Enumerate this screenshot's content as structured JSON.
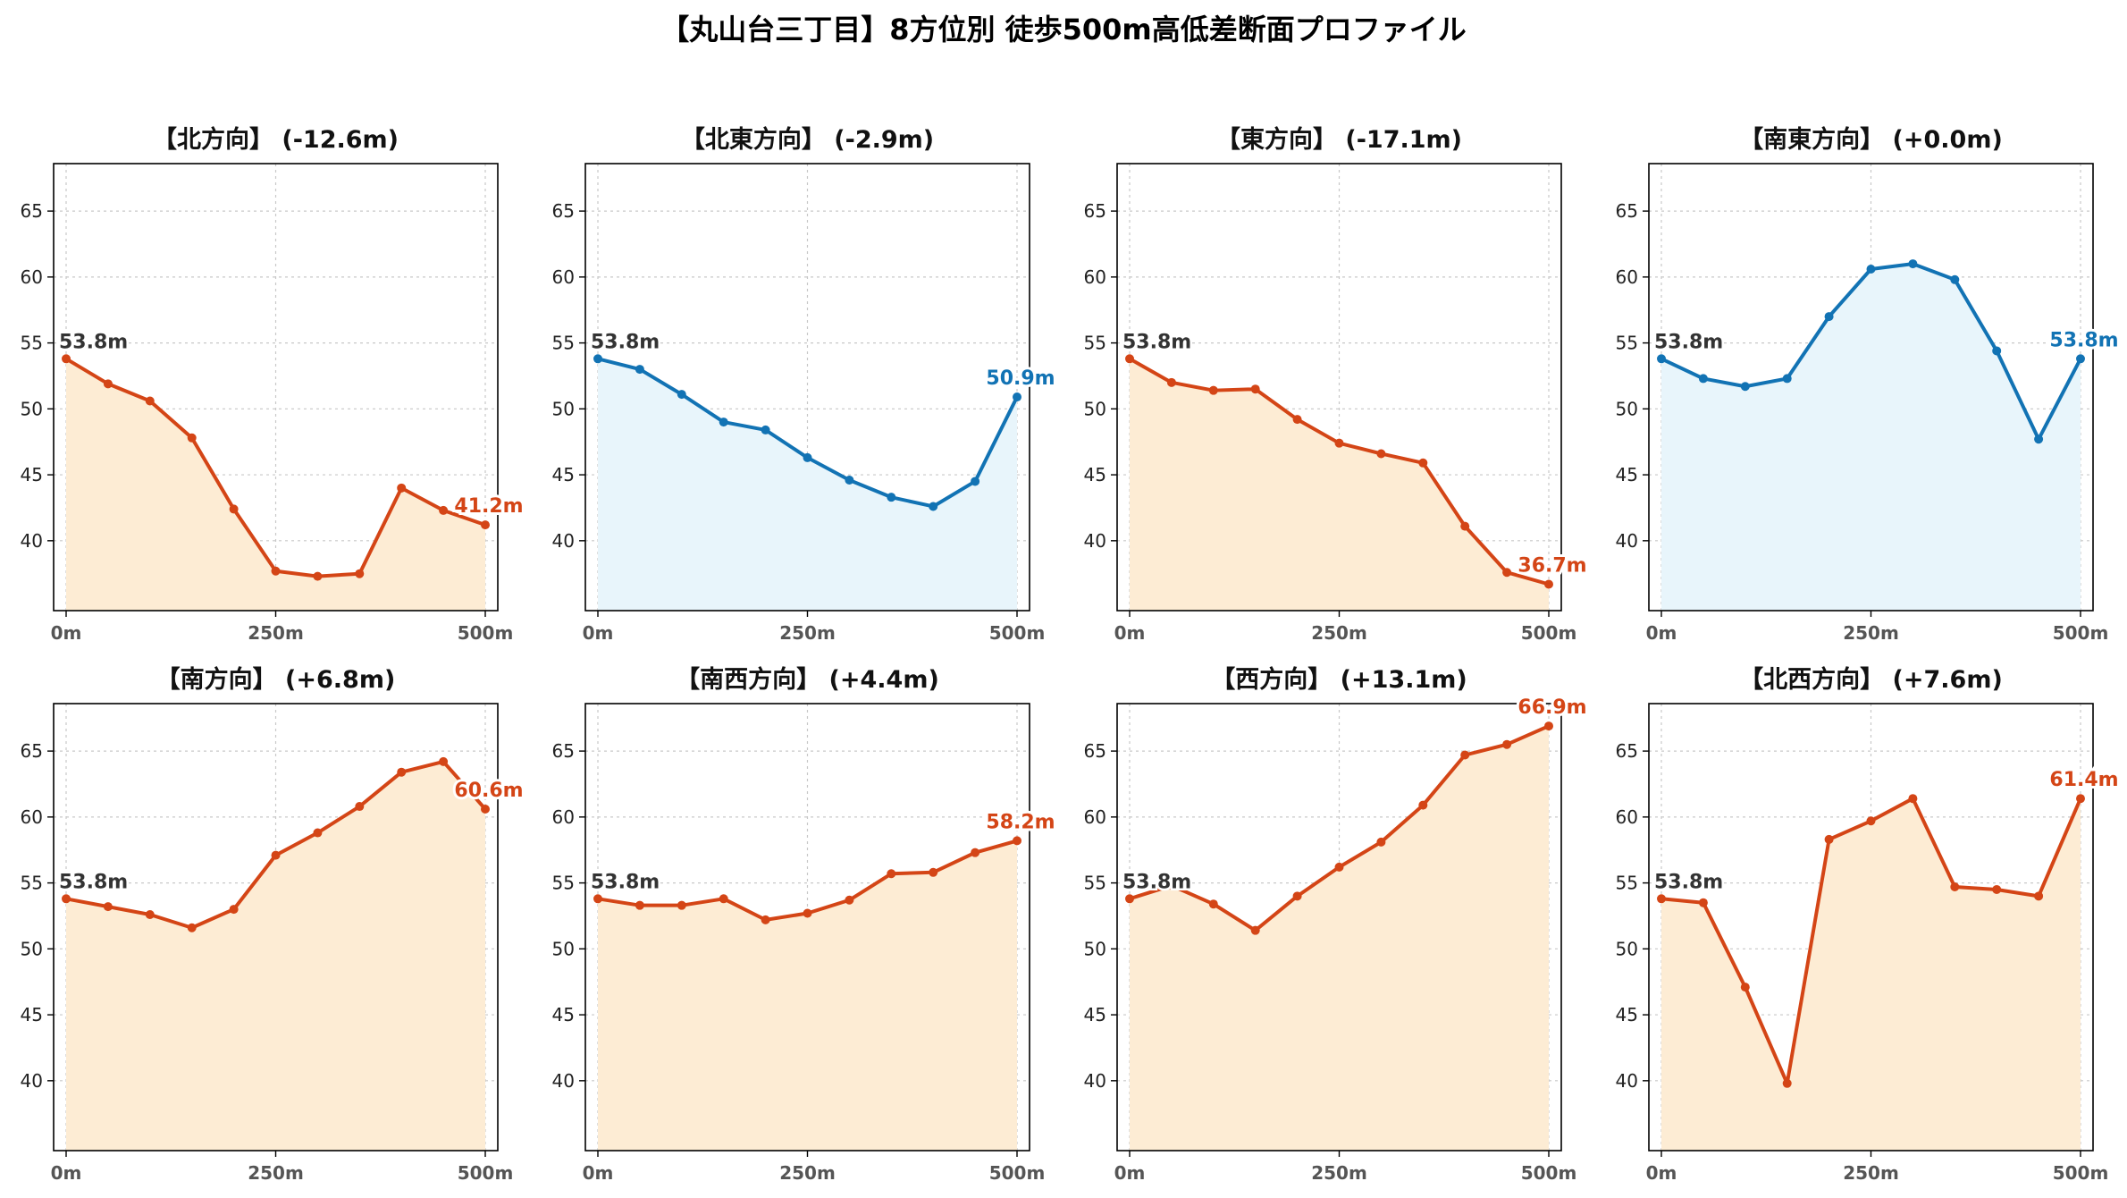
{
  "figure": {
    "title": "【丸山台三丁目】8方位別 徒歩500m高低差断面プロファイル",
    "colors": {
      "descent": "#d44516",
      "descent_fill": "#fdecd4",
      "ascent_blue": "#1273b4",
      "blue_fill": "#e8f5fb",
      "start_label": "#333333",
      "grid": "#c8c8c8"
    }
  },
  "chart_data": [
    {
      "type": "area",
      "title": "【北方向】 (-12.6m)",
      "x": [
        0,
        50,
        100,
        150,
        200,
        250,
        300,
        350,
        400,
        450,
        500
      ],
      "values": [
        53.8,
        51.9,
        50.6,
        47.8,
        42.4,
        37.7,
        37.3,
        37.5,
        44.0,
        42.3,
        41.2
      ],
      "x_tick_labels": [
        "0m",
        "250m",
        "500m"
      ],
      "x_ticks": [
        0,
        250,
        500
      ],
      "ylim": [
        34.7,
        68.6
      ],
      "y_ticks": [
        40,
        45,
        50,
        55,
        60,
        65
      ],
      "start_label": "53.8m",
      "end_label": "41.2m",
      "color": "descent"
    },
    {
      "type": "area",
      "title": "【北東方向】 (-2.9m)",
      "x": [
        0,
        50,
        100,
        150,
        200,
        250,
        300,
        350,
        400,
        450,
        500
      ],
      "values": [
        53.8,
        53.0,
        51.1,
        49.0,
        48.4,
        46.3,
        44.6,
        43.3,
        42.6,
        44.5,
        50.9
      ],
      "x_tick_labels": [
        "0m",
        "250m",
        "500m"
      ],
      "x_ticks": [
        0,
        250,
        500
      ],
      "ylim": [
        34.7,
        68.6
      ],
      "y_ticks": [
        40,
        45,
        50,
        55,
        60,
        65
      ],
      "start_label": "53.8m",
      "end_label": "50.9m",
      "color": "ascent_blue"
    },
    {
      "type": "area",
      "title": "【東方向】 (-17.1m)",
      "x": [
        0,
        50,
        100,
        150,
        200,
        250,
        300,
        350,
        400,
        450,
        500
      ],
      "values": [
        53.8,
        52.0,
        51.4,
        51.5,
        49.2,
        47.4,
        46.6,
        45.9,
        41.1,
        37.6,
        36.7
      ],
      "x_tick_labels": [
        "0m",
        "250m",
        "500m"
      ],
      "x_ticks": [
        0,
        250,
        500
      ],
      "ylim": [
        34.7,
        68.6
      ],
      "y_ticks": [
        40,
        45,
        50,
        55,
        60,
        65
      ],
      "start_label": "53.8m",
      "end_label": "36.7m",
      "color": "descent"
    },
    {
      "type": "area",
      "title": "【南東方向】 (+0.0m)",
      "x": [
        0,
        50,
        100,
        150,
        200,
        250,
        300,
        350,
        400,
        450,
        500
      ],
      "values": [
        53.8,
        52.3,
        51.7,
        52.3,
        57.0,
        60.6,
        61.0,
        59.8,
        54.4,
        47.7,
        53.8
      ],
      "x_tick_labels": [
        "0m",
        "250m",
        "500m"
      ],
      "x_ticks": [
        0,
        250,
        500
      ],
      "ylim": [
        34.7,
        68.6
      ],
      "y_ticks": [
        40,
        45,
        50,
        55,
        60,
        65
      ],
      "start_label": "53.8m",
      "end_label": "53.8m",
      "color": "ascent_blue"
    },
    {
      "type": "area",
      "title": "【南方向】 (+6.8m)",
      "x": [
        0,
        50,
        100,
        150,
        200,
        250,
        300,
        350,
        400,
        450,
        500
      ],
      "values": [
        53.8,
        53.2,
        52.6,
        51.6,
        53.0,
        57.1,
        58.8,
        60.8,
        63.4,
        64.2,
        60.6
      ],
      "x_tick_labels": [
        "0m",
        "250m",
        "500m"
      ],
      "x_ticks": [
        0,
        250,
        500
      ],
      "ylim": [
        34.7,
        68.6
      ],
      "y_ticks": [
        40,
        45,
        50,
        55,
        60,
        65
      ],
      "start_label": "53.8m",
      "end_label": "60.6m",
      "color": "descent"
    },
    {
      "type": "area",
      "title": "【南西方向】 (+4.4m)",
      "x": [
        0,
        50,
        100,
        150,
        200,
        250,
        300,
        350,
        400,
        450,
        500
      ],
      "values": [
        53.8,
        53.3,
        53.3,
        53.8,
        52.2,
        52.7,
        53.7,
        55.7,
        55.8,
        57.3,
        58.2
      ],
      "x_tick_labels": [
        "0m",
        "250m",
        "500m"
      ],
      "x_ticks": [
        0,
        250,
        500
      ],
      "ylim": [
        34.7,
        68.6
      ],
      "y_ticks": [
        40,
        45,
        50,
        55,
        60,
        65
      ],
      "start_label": "53.8m",
      "end_label": "58.2m",
      "color": "descent"
    },
    {
      "type": "area",
      "title": "【西方向】 (+13.1m)",
      "x": [
        0,
        50,
        100,
        150,
        200,
        250,
        300,
        350,
        400,
        450,
        500
      ],
      "values": [
        53.8,
        54.8,
        53.4,
        51.4,
        54.0,
        56.2,
        58.1,
        60.9,
        64.7,
        65.5,
        66.9
      ],
      "x_tick_labels": [
        "0m",
        "250m",
        "500m"
      ],
      "x_ticks": [
        0,
        250,
        500
      ],
      "ylim": [
        34.7,
        68.6
      ],
      "y_ticks": [
        40,
        45,
        50,
        55,
        60,
        65
      ],
      "start_label": "53.8m",
      "end_label": "66.9m",
      "color": "descent"
    },
    {
      "type": "area",
      "title": "【北西方向】 (+7.6m)",
      "x": [
        0,
        50,
        100,
        150,
        200,
        250,
        300,
        350,
        400,
        450,
        500
      ],
      "values": [
        53.8,
        53.5,
        47.1,
        39.8,
        58.3,
        59.7,
        61.4,
        54.7,
        54.5,
        54.0,
        61.4
      ],
      "x_tick_labels": [
        "0m",
        "250m",
        "500m"
      ],
      "x_ticks": [
        0,
        250,
        500
      ],
      "ylim": [
        34.7,
        68.6
      ],
      "y_ticks": [
        40,
        45,
        50,
        55,
        60,
        65
      ],
      "start_label": "53.8m",
      "end_label": "61.4m",
      "color": "descent"
    }
  ]
}
